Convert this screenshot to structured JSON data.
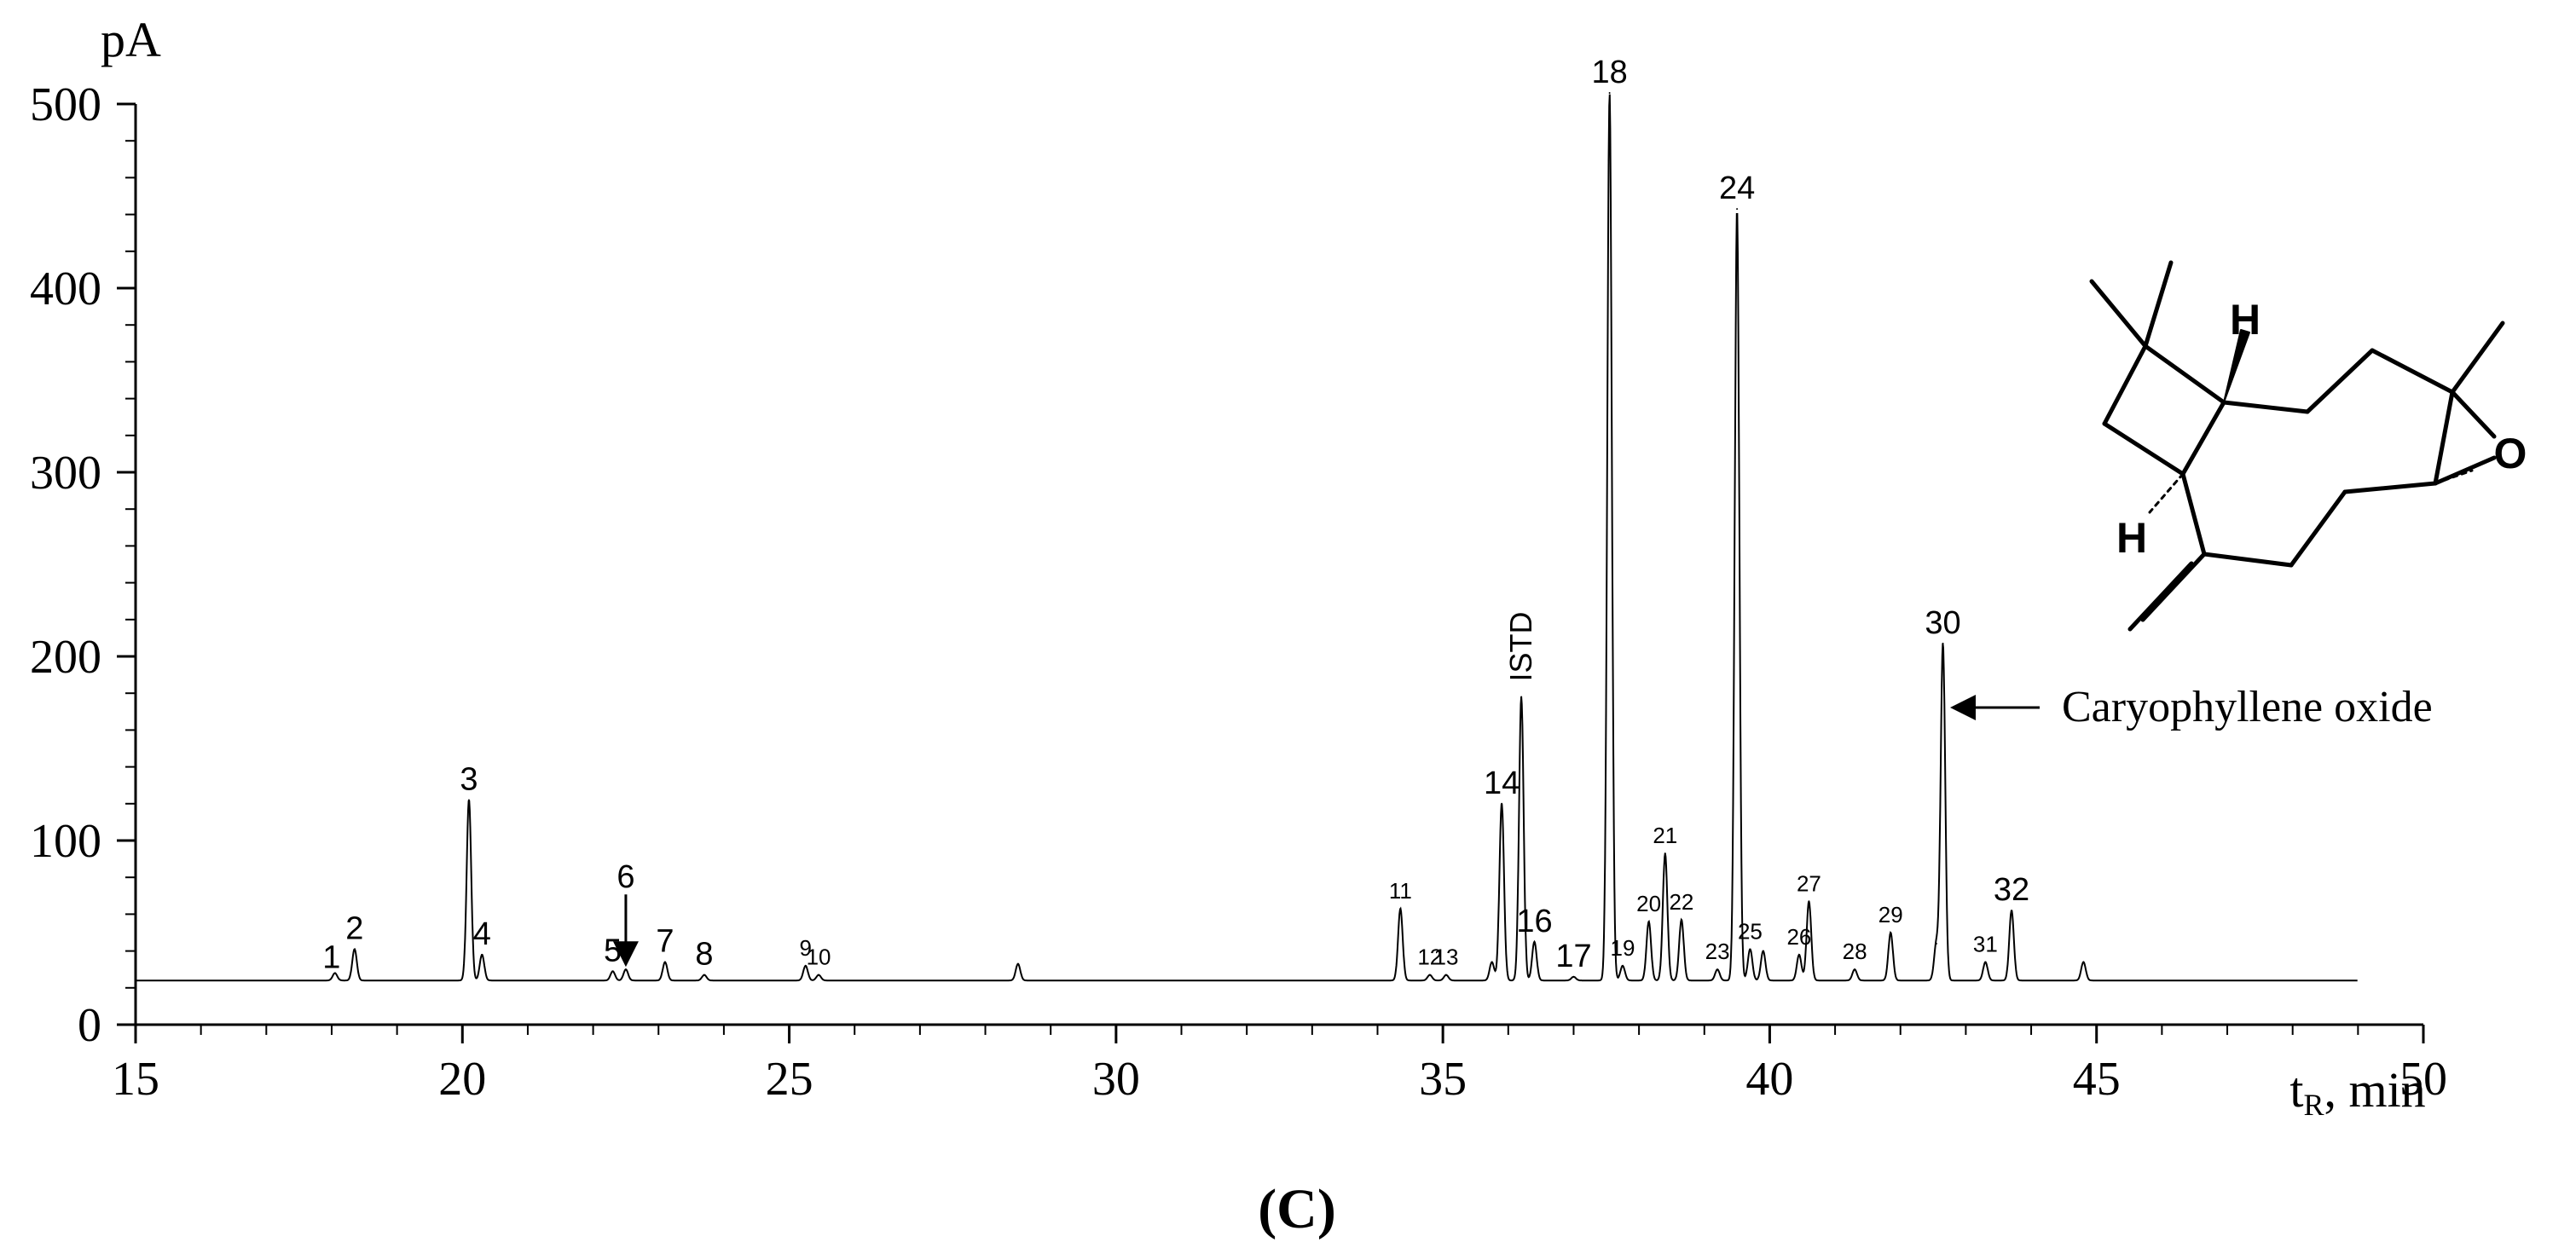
{
  "figure_label": "(C)",
  "chart_data": {
    "type": "line",
    "title": "",
    "xlabel": "t",
    "xlabel_sub": "R",
    "xlabel_unit": ", min",
    "ylabel": "pA",
    "xlim": [
      15,
      50
    ],
    "ylim": [
      0,
      500
    ],
    "x_ticks": [
      15,
      20,
      25,
      30,
      35,
      40,
      45,
      50
    ],
    "x_tick_labels": [
      "15",
      "20",
      "25",
      "30",
      "35",
      "40",
      "45",
      "50"
    ],
    "y_ticks": [
      0,
      100,
      200,
      300,
      400,
      500
    ],
    "y_tick_labels": [
      "0",
      "100",
      "200",
      "300",
      "400",
      "500"
    ],
    "baseline": 24,
    "grid": false,
    "series": [
      {
        "peaks": [
          {
            "x": 18.05,
            "y": 28
          },
          {
            "x": 18.35,
            "y": 41
          },
          {
            "x": 20.1,
            "y": 122
          },
          {
            "x": 20.3,
            "y": 38
          },
          {
            "x": 22.3,
            "y": 29
          },
          {
            "x": 22.5,
            "y": 30
          },
          {
            "x": 23.1,
            "y": 34
          },
          {
            "x": 23.7,
            "y": 27
          },
          {
            "x": 25.25,
            "y": 32
          },
          {
            "x": 25.45,
            "y": 27
          },
          {
            "x": 28.5,
            "y": 33
          },
          {
            "x": 34.35,
            "y": 63
          },
          {
            "x": 34.8,
            "y": 27
          },
          {
            "x": 35.05,
            "y": 27
          },
          {
            "x": 35.75,
            "y": 34
          },
          {
            "x": 35.9,
            "y": 120
          },
          {
            "x": 36.2,
            "y": 178
          },
          {
            "x": 36.4,
            "y": 45
          },
          {
            "x": 37.0,
            "y": 26
          },
          {
            "x": 37.55,
            "y": 506
          },
          {
            "x": 37.75,
            "y": 32
          },
          {
            "x": 38.15,
            "y": 56
          },
          {
            "x": 38.4,
            "y": 93
          },
          {
            "x": 38.65,
            "y": 57
          },
          {
            "x": 39.2,
            "y": 30
          },
          {
            "x": 39.5,
            "y": 443
          },
          {
            "x": 39.7,
            "y": 41
          },
          {
            "x": 39.9,
            "y": 40
          },
          {
            "x": 40.45,
            "y": 38
          },
          {
            "x": 40.6,
            "y": 67
          },
          {
            "x": 41.3,
            "y": 30
          },
          {
            "x": 41.85,
            "y": 50
          },
          {
            "x": 42.55,
            "y": 44
          },
          {
            "x": 42.65,
            "y": 207
          },
          {
            "x": 43.3,
            "y": 34
          },
          {
            "x": 43.7,
            "y": 62
          },
          {
            "x": 44.8,
            "y": 34
          }
        ]
      }
    ],
    "peak_labels": [
      {
        "text": "1",
        "x": 18.05
      },
      {
        "text": "2",
        "x": 18.35
      },
      {
        "text": "3",
        "x": 20.1
      },
      {
        "text": "4",
        "x": 20.3
      },
      {
        "text": "5",
        "x": 22.3
      },
      {
        "text": "6",
        "x": 22.5
      },
      {
        "text": "7",
        "x": 23.1
      },
      {
        "text": "8",
        "x": 23.7
      },
      {
        "text": "9",
        "x": 25.25
      },
      {
        "text": "10",
        "x": 25.45
      },
      {
        "text": "11",
        "x": 34.35
      },
      {
        "text": "12",
        "x": 34.8
      },
      {
        "text": "13",
        "x": 35.05
      },
      {
        "text": "14",
        "x": 35.9
      },
      {
        "text": "ISTD",
        "x": 36.2
      },
      {
        "text": "16",
        "x": 36.4
      },
      {
        "text": "17",
        "x": 37.0
      },
      {
        "text": "18",
        "x": 37.55
      },
      {
        "text": "19",
        "x": 37.75
      },
      {
        "text": "20",
        "x": 38.15
      },
      {
        "text": "21",
        "x": 38.4
      },
      {
        "text": "22",
        "x": 38.65
      },
      {
        "text": "23",
        "x": 39.2
      },
      {
        "text": "24",
        "x": 39.5
      },
      {
        "text": "25",
        "x": 39.7
      },
      {
        "text": "26",
        "x": 40.45
      },
      {
        "text": "27",
        "x": 40.6
      },
      {
        "text": "28",
        "x": 41.3
      },
      {
        "text": "29",
        "x": 41.85
      },
      {
        "text": "30",
        "x": 42.65
      },
      {
        "text": "31",
        "x": 43.3
      },
      {
        "text": "32",
        "x": 43.7
      }
    ],
    "annotation": {
      "text": "Caryophyllene oxide",
      "x": 42.65
    },
    "structure_atom_labels": [
      "H",
      "H",
      "O"
    ]
  }
}
